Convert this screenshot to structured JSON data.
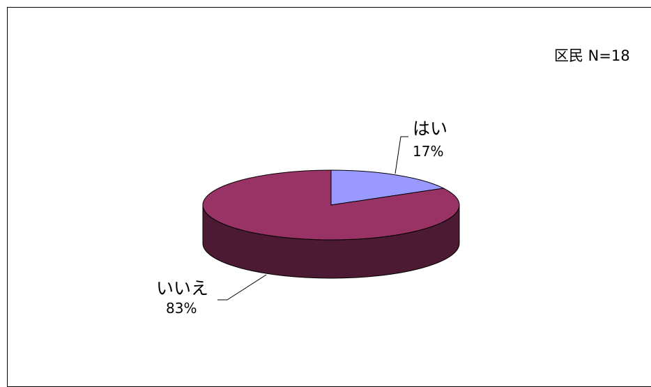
{
  "chart_data": {
    "type": "pie",
    "style": "3d",
    "title": "区民 N=18",
    "categories": [
      "はい",
      "いいえ"
    ],
    "values": [
      17,
      83
    ],
    "unit": "%",
    "data_labels": [
      {
        "category": "はい",
        "percent": "17%"
      },
      {
        "category": "いいえ",
        "percent": "83%"
      }
    ],
    "colors": {
      "はい": {
        "top": "#9999ff",
        "side": "#5c5c99"
      },
      "いいえ": {
        "top": "#993366",
        "side": "#4d1a33"
      },
      "outline": "#000000"
    }
  }
}
